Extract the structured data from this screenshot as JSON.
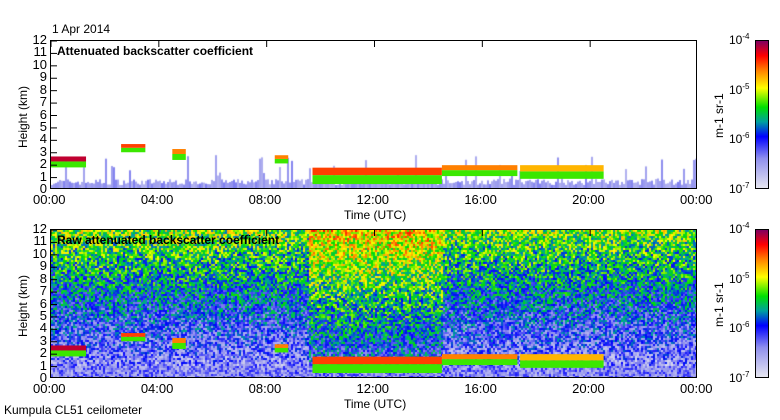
{
  "date": "1 Apr 2014",
  "footer": "Kumpula CL51 ceilometer",
  "chart_data": [
    {
      "type": "heatmap",
      "title": "Attenuated backscatter coefficient",
      "xlabel": "Time (UTC)",
      "ylabel": "Height (km)",
      "xticks": [
        "00:00",
        "04:00",
        "08:00",
        "12:00",
        "16:00",
        "20:00",
        "00:00"
      ],
      "xlim_hours": [
        0,
        24
      ],
      "yticks": [
        "0",
        "1",
        "2",
        "3",
        "4",
        "5",
        "6",
        "7",
        "8",
        "9",
        "10",
        "11",
        "12"
      ],
      "ylim_km": [
        0,
        12
      ],
      "colorbar": {
        "label": "m-1 sr-1",
        "ticks": [
          "10-7",
          "10-6",
          "10-5",
          "10-4"
        ],
        "scale": "log"
      },
      "cloud_layers": [
        {
          "start": 0,
          "end": 1.3,
          "base": 2.3,
          "top": 2.7,
          "level": 0.95
        },
        {
          "start": 2.6,
          "end": 3.5,
          "base": 3.4,
          "top": 3.7,
          "level": 0.85
        },
        {
          "start": 4.5,
          "end": 5.0,
          "base": 2.9,
          "top": 3.3,
          "level": 0.8
        },
        {
          "start": 8.3,
          "end": 8.8,
          "base": 2.5,
          "top": 2.8,
          "level": 0.8
        },
        {
          "start": 9.7,
          "end": 14.5,
          "base": 1.2,
          "top": 1.8,
          "level": 0.85
        },
        {
          "start": 14.5,
          "end": 17.3,
          "base": 1.6,
          "top": 2.0,
          "level": 0.8
        },
        {
          "start": 17.4,
          "end": 20.5,
          "base": 1.5,
          "top": 2.0,
          "level": 0.75
        }
      ]
    },
    {
      "type": "heatmap",
      "title": "Raw attenuated backscatter coefficient",
      "xlabel": "Time (UTC)",
      "ylabel": "Height (km)",
      "xticks": [
        "00:00",
        "04:00",
        "08:00",
        "12:00",
        "16:00",
        "20:00",
        "00:00"
      ],
      "xlim_hours": [
        0,
        24
      ],
      "yticks": [
        "0",
        "1",
        "2",
        "3",
        "4",
        "5",
        "6",
        "7",
        "8",
        "9",
        "10",
        "11",
        "12"
      ],
      "ylim_km": [
        0,
        12
      ],
      "colorbar": {
        "label": "m-1 sr-1",
        "ticks": [
          "10-7",
          "10-6",
          "10-5",
          "10-4"
        ],
        "scale": "log"
      }
    }
  ]
}
